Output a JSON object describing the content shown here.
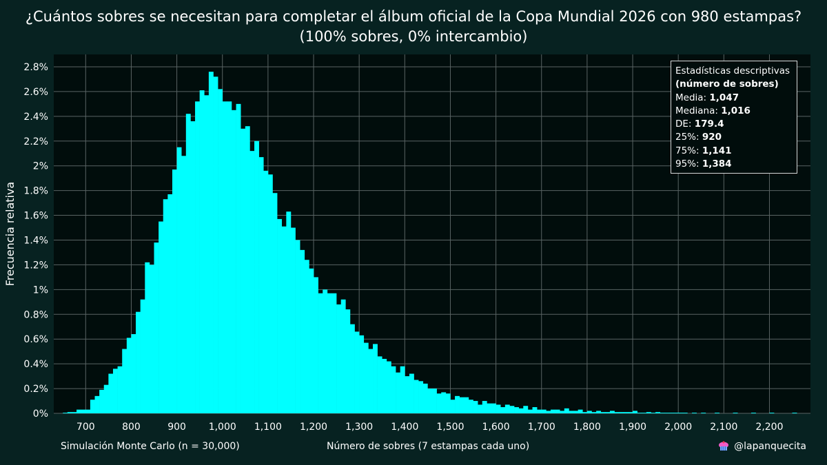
{
  "title_line1": "¿Cuántos sobres se necesitan para completar el álbum oficial de la Copa Mundial 2026 con 980 estampas?",
  "title_line2": "(100% sobres, 0% intercambio)",
  "footer_left": "Simulación Monte Carlo (n = 30,000)",
  "footer_handle": "@lapanquecita",
  "stats": {
    "heading": "Estadísticas descriptivas",
    "subheading": "(número de sobres)",
    "rows": [
      {
        "label": "Media: ",
        "value": "1,047"
      },
      {
        "label": "Mediana: ",
        "value": "1,016"
      },
      {
        "label": "DE: ",
        "value": "179.4"
      },
      {
        "label": "25%: ",
        "value": "920"
      },
      {
        "label": "75%: ",
        "value": "1,141"
      },
      {
        "label": "95%: ",
        "value": "1,384"
      }
    ]
  },
  "colors": {
    "background": "#072221",
    "plot_background": "#010d0c",
    "bar": "#00ffff",
    "grid": "#5a6464"
  },
  "chart_data": {
    "type": "histogram",
    "title": "¿Cuántos sobres se necesitan para completar el álbum oficial de la Copa Mundial 2026 con 980 estampas?",
    "subtitle": "(100% sobres, 0% intercambio)",
    "xlabel": "Número de sobres (7 estampas cada uno)",
    "ylabel": "Frecuencia relativa",
    "bin_width": 10,
    "xlim": [
      630,
      2290
    ],
    "ylim": [
      0,
      2.9
    ],
    "x_ticks": [
      700,
      800,
      900,
      1000,
      1100,
      1200,
      1300,
      1400,
      1500,
      1600,
      1700,
      1800,
      1900,
      2000,
      2100,
      2200
    ],
    "x_tick_labels": [
      "700",
      "800",
      "900",
      "1,000",
      "1,100",
      "1,200",
      "1,300",
      "1,400",
      "1,500",
      "1,600",
      "1,700",
      "1,800",
      "1,900",
      "2,000",
      "2,100",
      "2,200"
    ],
    "y_ticks": [
      0,
      0.2,
      0.4,
      0.6,
      0.8,
      1.0,
      1.2,
      1.4,
      1.6,
      1.8,
      2.0,
      2.2,
      2.4,
      2.6,
      2.8
    ],
    "y_tick_labels": [
      "0%",
      "0.2%",
      "0.4%",
      "0.6%",
      "0.8%",
      "1%",
      "1.2%",
      "1.4%",
      "1.6%",
      "1.8%",
      "2%",
      "2.2%",
      "2.4%",
      "2.6%",
      "2.8%"
    ],
    "grid": true,
    "legend": "none",
    "bins": [
      {
        "x": 650,
        "y": 0.005
      },
      {
        "x": 660,
        "y": 0.01
      },
      {
        "x": 670,
        "y": 0.01
      },
      {
        "x": 680,
        "y": 0.03
      },
      {
        "x": 690,
        "y": 0.03
      },
      {
        "x": 700,
        "y": 0.03
      },
      {
        "x": 710,
        "y": 0.11
      },
      {
        "x": 720,
        "y": 0.14
      },
      {
        "x": 730,
        "y": 0.19
      },
      {
        "x": 740,
        "y": 0.23
      },
      {
        "x": 750,
        "y": 0.32
      },
      {
        "x": 760,
        "y": 0.36
      },
      {
        "x": 770,
        "y": 0.38
      },
      {
        "x": 780,
        "y": 0.52
      },
      {
        "x": 790,
        "y": 0.61
      },
      {
        "x": 800,
        "y": 0.64
      },
      {
        "x": 810,
        "y": 0.82
      },
      {
        "x": 820,
        "y": 0.92
      },
      {
        "x": 830,
        "y": 1.22
      },
      {
        "x": 840,
        "y": 1.2
      },
      {
        "x": 850,
        "y": 1.38
      },
      {
        "x": 860,
        "y": 1.55
      },
      {
        "x": 870,
        "y": 1.73
      },
      {
        "x": 880,
        "y": 1.77
      },
      {
        "x": 890,
        "y": 1.97
      },
      {
        "x": 900,
        "y": 2.15
      },
      {
        "x": 910,
        "y": 2.08
      },
      {
        "x": 920,
        "y": 2.42
      },
      {
        "x": 930,
        "y": 2.36
      },
      {
        "x": 940,
        "y": 2.52
      },
      {
        "x": 950,
        "y": 2.61
      },
      {
        "x": 960,
        "y": 2.57
      },
      {
        "x": 970,
        "y": 2.76
      },
      {
        "x": 980,
        "y": 2.72
      },
      {
        "x": 990,
        "y": 2.62
      },
      {
        "x": 1000,
        "y": 2.52
      },
      {
        "x": 1010,
        "y": 2.52
      },
      {
        "x": 1020,
        "y": 2.45
      },
      {
        "x": 1030,
        "y": 2.5
      },
      {
        "x": 1040,
        "y": 2.3
      },
      {
        "x": 1050,
        "y": 2.32
      },
      {
        "x": 1060,
        "y": 2.12
      },
      {
        "x": 1070,
        "y": 2.2
      },
      {
        "x": 1080,
        "y": 2.07
      },
      {
        "x": 1090,
        "y": 1.96
      },
      {
        "x": 1100,
        "y": 1.93
      },
      {
        "x": 1110,
        "y": 1.78
      },
      {
        "x": 1120,
        "y": 1.57
      },
      {
        "x": 1130,
        "y": 1.51
      },
      {
        "x": 1140,
        "y": 1.63
      },
      {
        "x": 1150,
        "y": 1.5
      },
      {
        "x": 1160,
        "y": 1.4
      },
      {
        "x": 1170,
        "y": 1.32
      },
      {
        "x": 1180,
        "y": 1.24
      },
      {
        "x": 1190,
        "y": 1.17
      },
      {
        "x": 1200,
        "y": 1.1
      },
      {
        "x": 1210,
        "y": 0.97
      },
      {
        "x": 1220,
        "y": 1.0
      },
      {
        "x": 1230,
        "y": 0.97
      },
      {
        "x": 1240,
        "y": 0.97
      },
      {
        "x": 1250,
        "y": 0.88
      },
      {
        "x": 1260,
        "y": 0.92
      },
      {
        "x": 1270,
        "y": 0.84
      },
      {
        "x": 1280,
        "y": 0.72
      },
      {
        "x": 1290,
        "y": 0.66
      },
      {
        "x": 1300,
        "y": 0.63
      },
      {
        "x": 1310,
        "y": 0.57
      },
      {
        "x": 1320,
        "y": 0.52
      },
      {
        "x": 1330,
        "y": 0.56
      },
      {
        "x": 1340,
        "y": 0.46
      },
      {
        "x": 1350,
        "y": 0.44
      },
      {
        "x": 1360,
        "y": 0.42
      },
      {
        "x": 1370,
        "y": 0.38
      },
      {
        "x": 1380,
        "y": 0.33
      },
      {
        "x": 1390,
        "y": 0.38
      },
      {
        "x": 1400,
        "y": 0.3
      },
      {
        "x": 1410,
        "y": 0.32
      },
      {
        "x": 1420,
        "y": 0.27
      },
      {
        "x": 1430,
        "y": 0.26
      },
      {
        "x": 1440,
        "y": 0.24
      },
      {
        "x": 1450,
        "y": 0.2
      },
      {
        "x": 1460,
        "y": 0.2
      },
      {
        "x": 1470,
        "y": 0.16
      },
      {
        "x": 1480,
        "y": 0.17
      },
      {
        "x": 1490,
        "y": 0.16
      },
      {
        "x": 1500,
        "y": 0.11
      },
      {
        "x": 1510,
        "y": 0.14
      },
      {
        "x": 1520,
        "y": 0.13
      },
      {
        "x": 1530,
        "y": 0.13
      },
      {
        "x": 1540,
        "y": 0.11
      },
      {
        "x": 1550,
        "y": 0.1
      },
      {
        "x": 1560,
        "y": 0.07
      },
      {
        "x": 1570,
        "y": 0.1
      },
      {
        "x": 1580,
        "y": 0.08
      },
      {
        "x": 1590,
        "y": 0.08
      },
      {
        "x": 1600,
        "y": 0.07
      },
      {
        "x": 1610,
        "y": 0.05
      },
      {
        "x": 1620,
        "y": 0.07
      },
      {
        "x": 1630,
        "y": 0.06
      },
      {
        "x": 1640,
        "y": 0.05
      },
      {
        "x": 1650,
        "y": 0.04
      },
      {
        "x": 1660,
        "y": 0.06
      },
      {
        "x": 1670,
        "y": 0.03
      },
      {
        "x": 1680,
        "y": 0.05
      },
      {
        "x": 1690,
        "y": 0.03
      },
      {
        "x": 1700,
        "y": 0.03
      },
      {
        "x": 1710,
        "y": 0.02
      },
      {
        "x": 1720,
        "y": 0.03
      },
      {
        "x": 1730,
        "y": 0.03
      },
      {
        "x": 1740,
        "y": 0.02
      },
      {
        "x": 1750,
        "y": 0.04
      },
      {
        "x": 1760,
        "y": 0.02
      },
      {
        "x": 1770,
        "y": 0.02
      },
      {
        "x": 1780,
        "y": 0.03
      },
      {
        "x": 1790,
        "y": 0.01
      },
      {
        "x": 1800,
        "y": 0.02
      },
      {
        "x": 1810,
        "y": 0.01
      },
      {
        "x": 1820,
        "y": 0.02
      },
      {
        "x": 1830,
        "y": 0.01
      },
      {
        "x": 1840,
        "y": 0.01
      },
      {
        "x": 1850,
        "y": 0.02
      },
      {
        "x": 1860,
        "y": 0.01
      },
      {
        "x": 1870,
        "y": 0.01
      },
      {
        "x": 1880,
        "y": 0.01
      },
      {
        "x": 1890,
        "y": 0.01
      },
      {
        "x": 1900,
        "y": 0.02
      },
      {
        "x": 1910,
        "y": 0.005
      },
      {
        "x": 1920,
        "y": 0.005
      },
      {
        "x": 1930,
        "y": 0.01
      },
      {
        "x": 1940,
        "y": 0.005
      },
      {
        "x": 1950,
        "y": 0.01
      },
      {
        "x": 1960,
        "y": 0.005
      },
      {
        "x": 1970,
        "y": 0.005
      },
      {
        "x": 1980,
        "y": 0.005
      },
      {
        "x": 1990,
        "y": 0.005
      },
      {
        "x": 2000,
        "y": 0.005
      },
      {
        "x": 2010,
        "y": 0.005
      },
      {
        "x": 2030,
        "y": 0.005
      },
      {
        "x": 2050,
        "y": 0.005
      },
      {
        "x": 2080,
        "y": 0.005
      },
      {
        "x": 2120,
        "y": 0.005
      },
      {
        "x": 2160,
        "y": 0.005
      },
      {
        "x": 2200,
        "y": 0.005
      },
      {
        "x": 2250,
        "y": 0.005
      }
    ]
  }
}
